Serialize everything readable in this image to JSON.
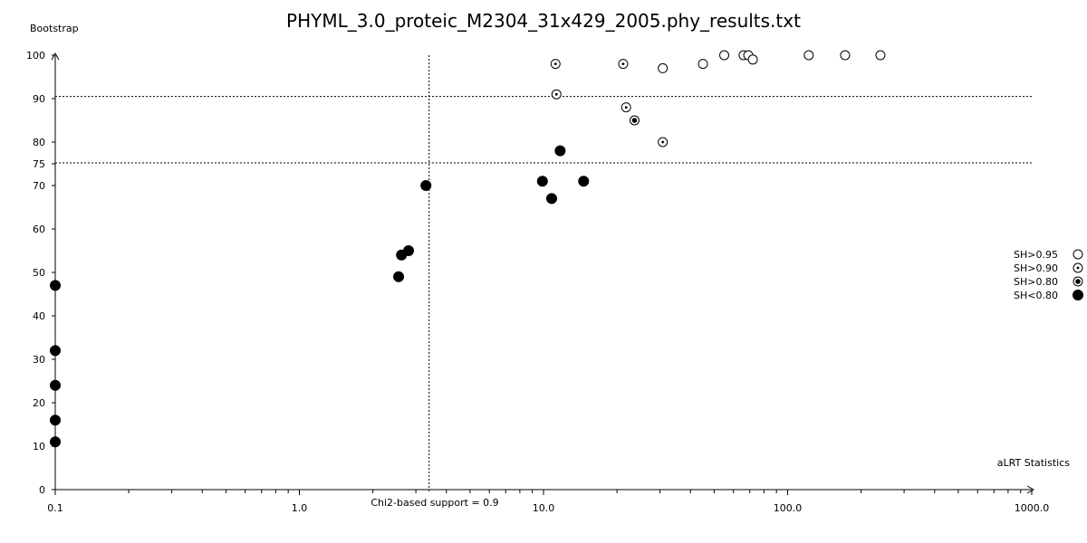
{
  "chart_data": {
    "type": "scatter",
    "title": "PHYML_3.0_proteic_M2304_31x429_2005.phy_results.txt",
    "xlabel": "aLRT Statistics",
    "ylabel": "Bootstrap",
    "xscale": "log",
    "xlim": [
      0.1,
      1000.0
    ],
    "ylim": [
      0,
      100
    ],
    "x_tick_labels": [
      "0.1",
      "1.0",
      "10.0",
      "100.0",
      "1000.0"
    ],
    "x_tick_values": [
      0.1,
      1.0,
      10.0,
      100.0,
      1000.0
    ],
    "y_tick_labels": [
      "0",
      "10",
      "20",
      "30",
      "40",
      "50",
      "60",
      "70",
      "75",
      "80",
      "90",
      "100"
    ],
    "y_tick_values": [
      0,
      10,
      20,
      30,
      40,
      50,
      60,
      70,
      75,
      80,
      90,
      100
    ],
    "grid": false,
    "reference_lines": {
      "vertical": {
        "x": 3.4,
        "label": "Chi2-based support = 0.9"
      },
      "horizontal": [
        {
          "y": 90.5
        },
        {
          "y": 75.2
        }
      ]
    },
    "legend": {
      "placement": "right",
      "entries": [
        {
          "label": "SH>0.95",
          "marker": "open-circle"
        },
        {
          "label": "SH>0.90",
          "marker": "dotted-circle"
        },
        {
          "label": "SH>0.80",
          "marker": "ring-dot-circle"
        },
        {
          "label": "SH<0.80",
          "marker": "filled-circle"
        }
      ]
    },
    "series": [
      {
        "marker": "open-circle",
        "points": [
          {
            "x": 30.8,
            "y": 97
          },
          {
            "x": 45,
            "y": 98
          },
          {
            "x": 55,
            "y": 100
          },
          {
            "x": 66,
            "y": 100
          },
          {
            "x": 69,
            "y": 100
          },
          {
            "x": 72,
            "y": 99
          },
          {
            "x": 122,
            "y": 100
          },
          {
            "x": 172,
            "y": 100
          },
          {
            "x": 240,
            "y": 100
          }
        ]
      },
      {
        "marker": "dotted-circle",
        "points": [
          {
            "x": 11.2,
            "y": 98
          },
          {
            "x": 21.2,
            "y": 98
          },
          {
            "x": 11.3,
            "y": 91
          },
          {
            "x": 21.8,
            "y": 88
          },
          {
            "x": 30.8,
            "y": 80
          }
        ]
      },
      {
        "marker": "ring-dot-circle",
        "points": [
          {
            "x": 23.6,
            "y": 85
          }
        ]
      },
      {
        "marker": "filled-circle",
        "points": [
          {
            "x": 0.1,
            "y": 47
          },
          {
            "x": 0.1,
            "y": 32
          },
          {
            "x": 0.1,
            "y": 24
          },
          {
            "x": 0.1,
            "y": 16
          },
          {
            "x": 0.1,
            "y": 11
          },
          {
            "x": 2.55,
            "y": 49
          },
          {
            "x": 2.62,
            "y": 54
          },
          {
            "x": 2.8,
            "y": 55
          },
          {
            "x": 3.3,
            "y": 70
          },
          {
            "x": 9.9,
            "y": 71
          },
          {
            "x": 10.8,
            "y": 67
          },
          {
            "x": 11.7,
            "y": 78
          },
          {
            "x": 14.6,
            "y": 71
          }
        ]
      }
    ]
  }
}
